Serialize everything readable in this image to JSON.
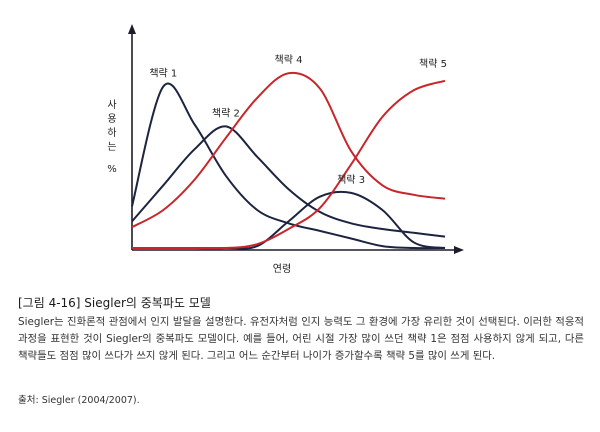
{
  "caption": {
    "title": "[그림 4-16] Siegler의 중복파도 모델",
    "body": "Siegler는 진화론적 관점에서 인지 발달을 설명한다. 유전자처럼 인지 능력도 그 환경에 가장 유리한 것이 선택된다. 이러한 적응적 과정을 표현한 것이 Siegler의 중복파도 모델이다. 예를 들어, 어린 시절 가장 많이 쓰던 책략 1은 점점 사용하지 않게 되고, 다른 책략들도 점점 많이 쓰다가 쓰지 않게 된다. 그리고 어느 순간부터 나이가 증가할수록 책략 5를 많이 쓰게 된다.",
    "source": "출처: Siegler (2004/2007)."
  },
  "chart_data": {
    "type": "line",
    "xlabel": "연령",
    "ylabel": "사용하는 %",
    "grid": false,
    "legend": "none",
    "x": [
      0,
      10,
      20,
      30,
      40,
      50,
      60,
      70,
      80,
      90,
      100
    ],
    "ylim": [
      0,
      100
    ],
    "series": [
      {
        "name": "책략 1",
        "color": "#1c2440",
        "values": [
          22,
          85,
          65,
          38,
          20,
          13,
          9,
          5,
          1,
          0,
          0
        ]
      },
      {
        "name": "책략 2",
        "color": "#1c2440",
        "values": [
          14,
          33,
          52,
          64,
          48,
          31,
          19,
          13,
          10,
          8,
          6
        ]
      },
      {
        "name": "책략 3",
        "color": "#1c2440",
        "values": [
          0,
          0,
          0,
          0,
          1,
          14,
          27,
          29,
          20,
          3,
          0
        ]
      },
      {
        "name": "책략 4",
        "color": "#c8262a",
        "values": [
          11,
          20,
          36,
          58,
          79,
          92,
          84,
          51,
          33,
          28,
          26
        ]
      },
      {
        "name": "책략 5",
        "color": "#c8262a",
        "values": [
          0,
          0,
          0,
          0,
          2,
          10,
          21,
          44,
          69,
          83,
          88
        ]
      }
    ]
  }
}
